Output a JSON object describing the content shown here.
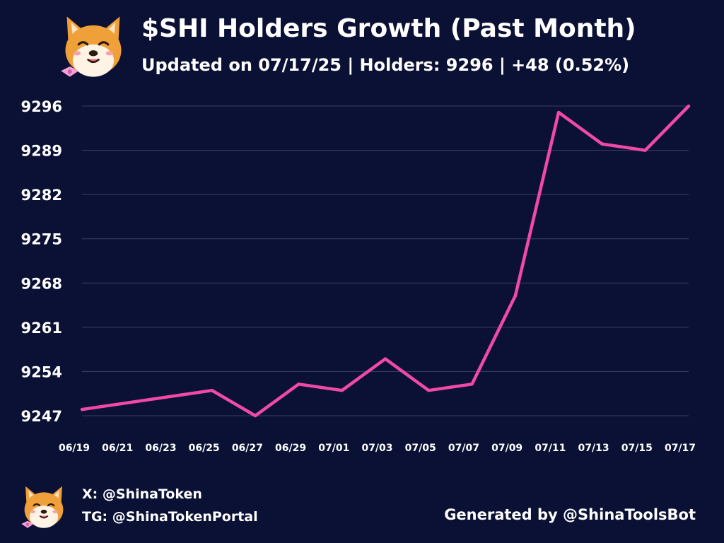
{
  "header": {
    "title": "$SHI Holders Growth (Past Month)",
    "subtitle": "Updated on 07/17/25 | Holders: 9296 | +48 (0.52%)"
  },
  "footer": {
    "x_handle": "X: @ShinaToken",
    "tg_handle": "TG: @ShinaTokenPortal",
    "generated_by": "Generated by @ShinaToolsBot"
  },
  "colors": {
    "background": "#0b1134",
    "line": "#f04aa6",
    "grid": "#3a4064",
    "text": "#ffffff"
  },
  "chart_data": {
    "type": "line",
    "title": "$SHI Holders Growth (Past Month)",
    "xlabel": "",
    "ylabel": "",
    "x_ticks": [
      "06/19",
      "06/21",
      "06/23",
      "06/25",
      "06/27",
      "06/29",
      "07/01",
      "07/03",
      "07/05",
      "07/07",
      "07/09",
      "07/11",
      "07/13",
      "07/15",
      "07/17"
    ],
    "y_ticks": [
      9247,
      9254,
      9261,
      9268,
      9275,
      9282,
      9289,
      9296
    ],
    "ylim": [
      9247,
      9296
    ],
    "grid": true,
    "series": [
      {
        "name": "",
        "x": [
          "06/19",
          "06/25",
          "06/27",
          "06/29",
          "07/01",
          "07/03",
          "07/05",
          "07/07",
          "07/09",
          "07/11",
          "07/13",
          "07/15",
          "07/17"
        ],
        "y": [
          9248,
          9251,
          9247,
          9252,
          9251,
          9256,
          9251,
          9252,
          9266,
          9295,
          9290,
          9289,
          9296
        ]
      }
    ]
  }
}
